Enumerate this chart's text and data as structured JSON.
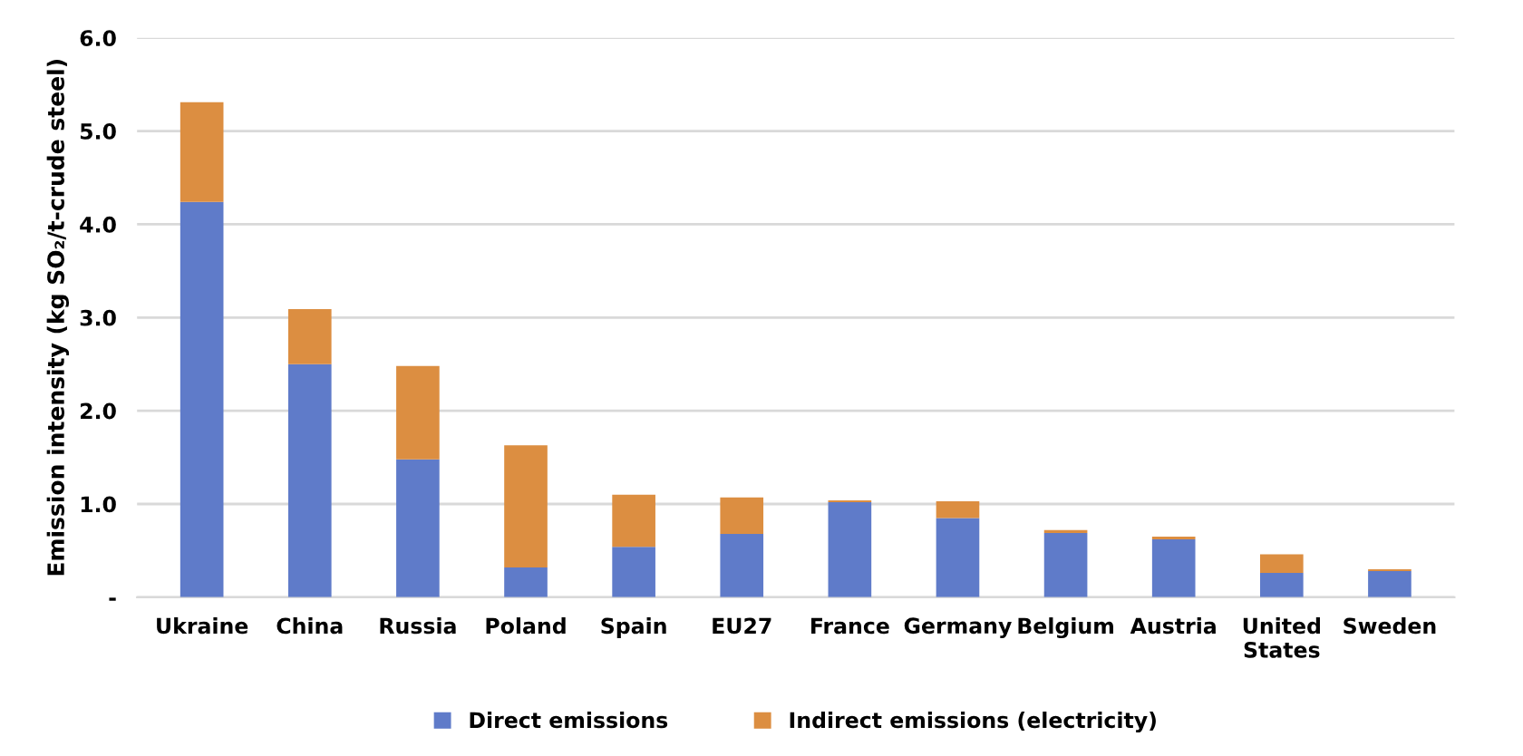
{
  "chart_data": {
    "type": "bar",
    "stacked": true,
    "ylabel": "Emission intensity (kg SO₂/t-crude steel)",
    "categories": [
      "Ukraine",
      "China",
      "Russia",
      "Poland",
      "Spain",
      "EU27",
      "France",
      "Germany",
      "Belgium",
      "Austria",
      "United\nStates",
      "Sweden"
    ],
    "series": [
      {
        "name": "Direct emissions",
        "color": "#5f7bc9",
        "values": [
          4.24,
          2.5,
          1.48,
          0.32,
          0.54,
          0.68,
          1.02,
          0.85,
          0.69,
          0.62,
          0.26,
          0.28
        ]
      },
      {
        "name": "Indirect emissions (electricity)",
        "color": "#dc8e41",
        "values": [
          1.07,
          0.59,
          1.0,
          1.31,
          0.56,
          0.39,
          0.02,
          0.18,
          0.03,
          0.03,
          0.2,
          0.02
        ]
      }
    ],
    "ylim": [
      0,
      6
    ],
    "yticks": [
      {
        "value": 0,
        "label": "-"
      },
      {
        "value": 1,
        "label": "1.0"
      },
      {
        "value": 2,
        "label": "2.0"
      },
      {
        "value": 3,
        "label": "3.0"
      },
      {
        "value": 4,
        "label": "4.0"
      },
      {
        "value": 5,
        "label": "5.0"
      },
      {
        "value": 6,
        "label": "6.0"
      }
    ],
    "grid": "y",
    "legend": "bottom"
  }
}
